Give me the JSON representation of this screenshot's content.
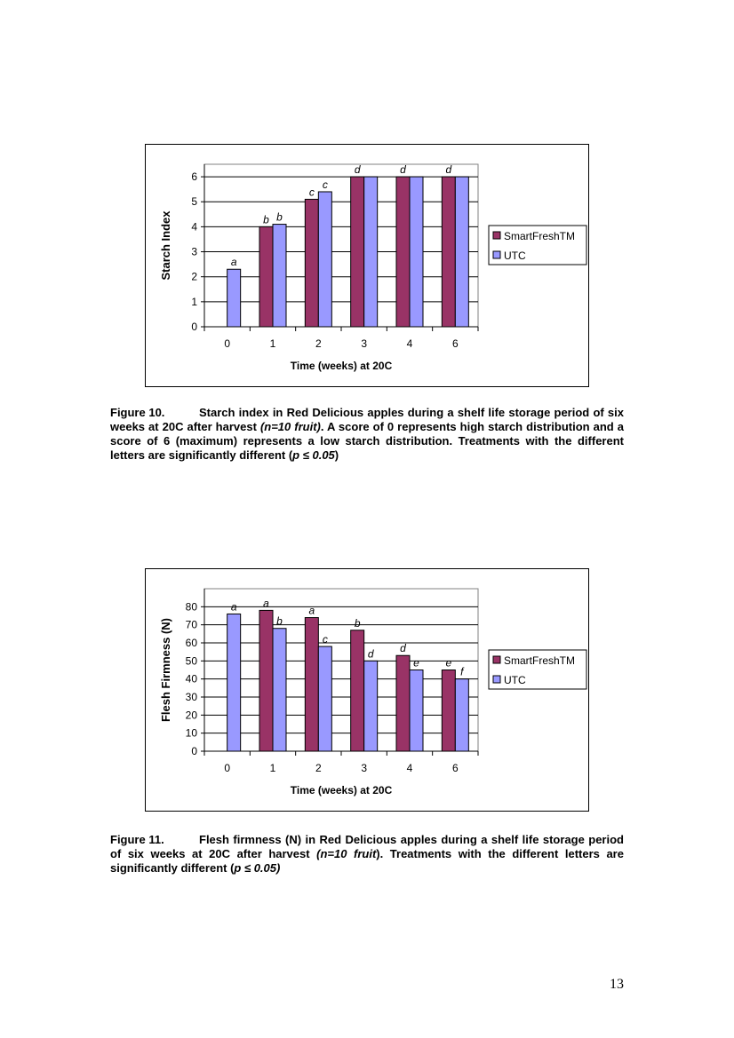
{
  "colors": {
    "smartfresh": "#993366",
    "utc": "#9999FF",
    "grid": "#000000",
    "plot_bg": "#ffffff"
  },
  "chart_data": [
    {
      "type": "bar",
      "xlabel": "Time (weeks) at 20C",
      "ylabel": "Starch Index",
      "categories": [
        "0",
        "1",
        "2",
        "3",
        "4",
        "6"
      ],
      "ylim": [
        0,
        6.5
      ],
      "yticks": [
        0,
        1,
        2,
        3,
        4,
        5,
        6
      ],
      "grid": true,
      "legend": "right",
      "series": [
        {
          "name": "SmartFreshTM",
          "values": [
            null,
            4.0,
            5.1,
            6.0,
            6.0,
            6.0
          ],
          "labels": [
            "",
            "b",
            "c",
            "d",
            "d",
            "d"
          ]
        },
        {
          "name": "UTC",
          "values": [
            2.3,
            4.1,
            5.4,
            6.0,
            6.0,
            6.0
          ],
          "labels": [
            "a",
            "b",
            "c",
            "",
            "",
            ""
          ]
        }
      ]
    },
    {
      "type": "bar",
      "xlabel": "Time (weeks) at 20C",
      "ylabel": "Flesh Firmness (N)",
      "categories": [
        "0",
        "1",
        "2",
        "3",
        "4",
        "6"
      ],
      "ylim": [
        0,
        90
      ],
      "yticks": [
        0,
        10,
        20,
        30,
        40,
        50,
        60,
        70,
        80
      ],
      "grid": true,
      "legend": "right",
      "series": [
        {
          "name": "SmartFreshTM",
          "values": [
            null,
            78,
            74,
            67,
            53,
            45
          ],
          "labels": [
            "",
            "a",
            "a",
            "b",
            "d",
            "e"
          ]
        },
        {
          "name": "UTC",
          "values": [
            76,
            68,
            58,
            50,
            45,
            40
          ],
          "labels": [
            "a",
            "b",
            "c",
            "d",
            "e",
            "f"
          ]
        }
      ]
    }
  ],
  "captions": [
    {
      "label": "Figure 10.",
      "text_part1": "Starch index in Red Delicious apples during a shelf life storage period of six weeks at 20C after harvest ",
      "text_italic1": "(n=10 fruit)",
      "text_part2": ". A score of 0 represents high starch distribution and a score of 6 (maximum) represents a low starch distribution. Treatments with the different letters are significantly different (",
      "text_italic2": "p ≤ 0.05",
      "text_part3": ")"
    },
    {
      "label": "Figure 11.",
      "text_part1": "Flesh firmness (N) in Red Delicious apples during a shelf life storage period of six weeks at 20C after harvest ",
      "text_italic1": "(n=10 fruit",
      "text_part2": "). Treatments with the different letters are significantly different (",
      "text_italic2": "p ≤ 0.05)",
      "text_part3": ""
    }
  ],
  "page_number": "13"
}
